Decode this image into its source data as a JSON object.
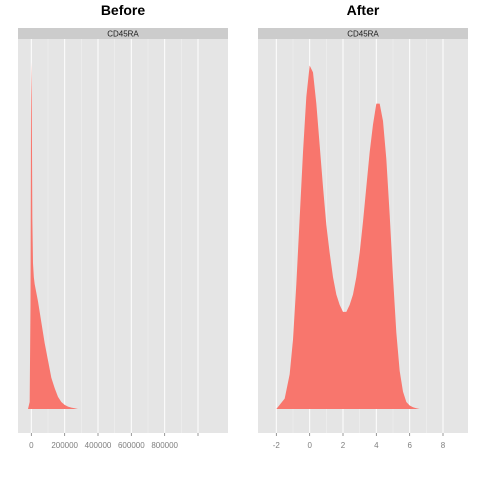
{
  "chart_data": [
    {
      "type": "area",
      "title": "Before",
      "facet": "CD45RA",
      "color": "#F8766D",
      "xlim": [
        -80000,
        1180000
      ],
      "ylim": [
        0,
        1
      ],
      "xticks": [
        0,
        200000,
        400000,
        600000,
        800000,
        1000000
      ],
      "xtick_labels": [
        "0",
        "200000",
        "400000",
        "600000",
        "800000",
        ""
      ],
      "x": [
        -20000,
        -10000,
        -5000,
        -2000,
        0,
        3000,
        6000,
        10000,
        15000,
        20000,
        40000,
        60000,
        80000,
        100000,
        120000,
        140000,
        160000,
        180000,
        200000,
        220000,
        240000,
        260000,
        280000
      ],
      "y": [
        0,
        0.02,
        0.3,
        0.9,
        1.0,
        0.85,
        0.55,
        0.42,
        0.38,
        0.36,
        0.31,
        0.25,
        0.19,
        0.14,
        0.09,
        0.06,
        0.035,
        0.02,
        0.012,
        0.007,
        0.004,
        0.002,
        0
      ]
    },
    {
      "type": "area",
      "title": "After",
      "facet": "CD45RA",
      "color": "#F8766D",
      "xlim": [
        -3.1,
        9.5
      ],
      "ylim": [
        0,
        1
      ],
      "xticks": [
        -2,
        0,
        2,
        4,
        6,
        8
      ],
      "xtick_labels": [
        "-2",
        "0",
        "2",
        "4",
        "6",
        "8"
      ],
      "x": [
        -2,
        -1.5,
        -1.2,
        -1,
        -0.8,
        -0.6,
        -0.4,
        -0.2,
        0,
        0.2,
        0.4,
        0.6,
        0.8,
        1,
        1.2,
        1.4,
        1.6,
        1.8,
        2,
        2.2,
        2.4,
        2.6,
        2.8,
        3,
        3.2,
        3.4,
        3.6,
        3.8,
        4,
        4.2,
        4.4,
        4.6,
        4.8,
        5,
        5.2,
        5.4,
        5.6,
        5.8,
        6,
        6.2,
        6.4,
        6.6
      ],
      "y": [
        0,
        0.03,
        0.1,
        0.2,
        0.36,
        0.55,
        0.74,
        0.9,
        0.99,
        0.97,
        0.88,
        0.76,
        0.64,
        0.53,
        0.45,
        0.38,
        0.33,
        0.3,
        0.28,
        0.28,
        0.3,
        0.33,
        0.38,
        0.45,
        0.54,
        0.64,
        0.74,
        0.82,
        0.88,
        0.88,
        0.83,
        0.72,
        0.56,
        0.38,
        0.22,
        0.11,
        0.05,
        0.02,
        0.01,
        0.005,
        0.002,
        0
      ]
    }
  ]
}
